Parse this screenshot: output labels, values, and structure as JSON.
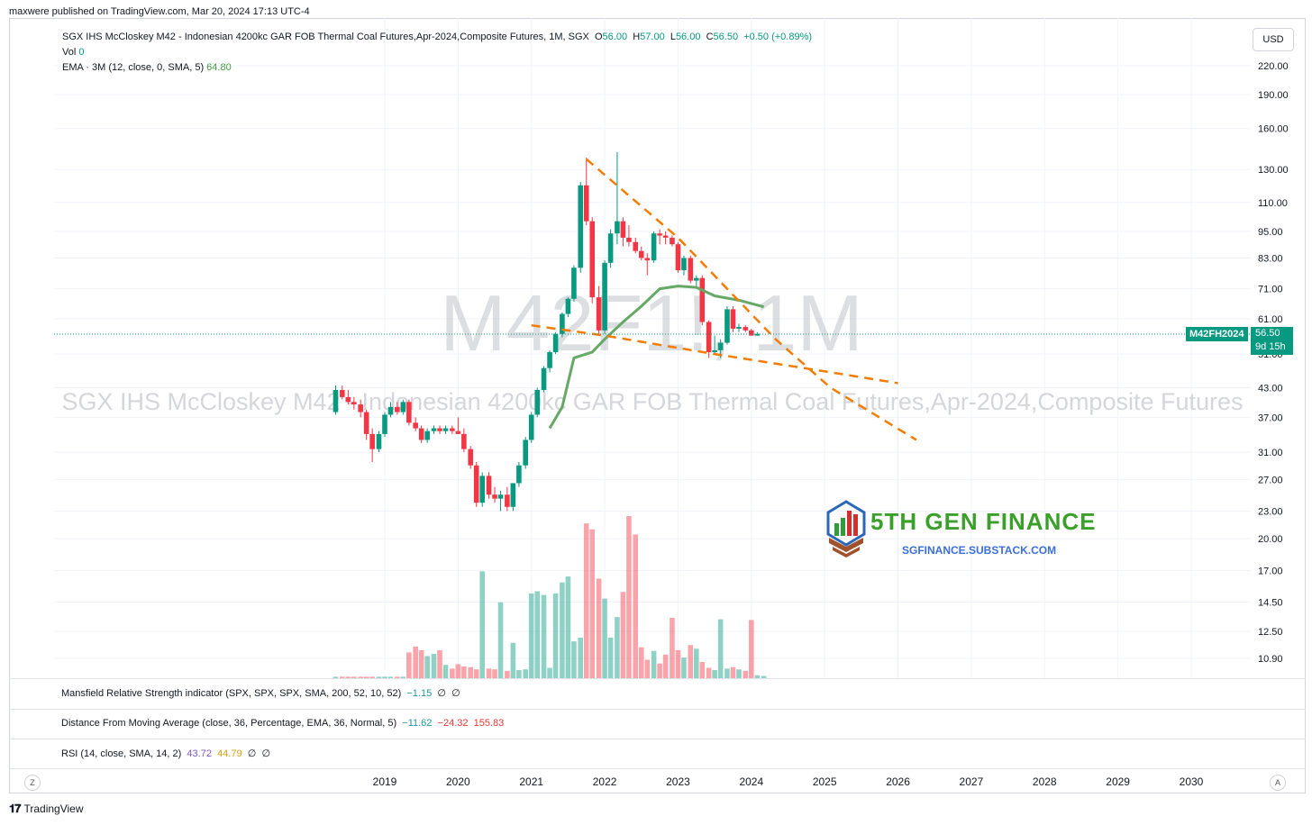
{
  "header": {
    "published": "maxwere published on TradingView.com, Mar 20, 2024 17:13 UTC-4"
  },
  "legend": {
    "symbol_desc": "SGX IHS McCloskey M42 - Indonesian 4200kc GAR FOB Thermal Coal Futures,Apr-2024,Composite Futures, 1M, SGX",
    "o_label": "O",
    "o_val": "56.00",
    "h_label": "H",
    "h_val": "57.00",
    "l_label": "L",
    "l_val": "56.00",
    "c_label": "C",
    "c_val": "56.50",
    "change": "+0.50 (+0.89%)",
    "vol_label": "Vol",
    "vol_val": "0",
    "ema_label": "EMA · 3M (12, close, 0, SMA, 5)",
    "ema_val": "64.80"
  },
  "watermark": {
    "ticker": "M42F1!, 1M",
    "name": "SGX IHS McCloskey M42 - Indonesian 4200kc GAR FOB Thermal Coal Futures,Apr-2024,Composite Futures"
  },
  "currency_button": "USD",
  "price_tag": {
    "symbol": "M42FH2024",
    "price": "56.50",
    "countdown": "9d 15h"
  },
  "brand": {
    "title": "5TH GEN FINANCE",
    "subtitle": "SGFINANCE.SUBSTACK.COM"
  },
  "indicators": {
    "mansfield": {
      "label": "Mansfield Relative Strength indicator (SPX, SPX, SPX, SMA, 200, 52, 10, 52)",
      "v1": "−1.15",
      "v2": "∅",
      "v3": "∅"
    },
    "dfma": {
      "label": "Distance From Moving Average (close, 36, Percentage, EMA, 36, Normal, 5)",
      "v1": "−11.62",
      "v2": "−24.32",
      "v3": "155.83"
    },
    "rsi": {
      "label": "RSI (14, close, SMA, 14, 2)",
      "v1": "43.72",
      "v2": "44.79",
      "v3": "∅",
      "v4": "∅"
    }
  },
  "footer": {
    "z": "Z",
    "a": "A",
    "brand": "TradingView"
  },
  "colors": {
    "up": "#089981",
    "down": "#f23645",
    "ema": "#66a865",
    "trend": "#f57c00"
  },
  "chart_data": {
    "type": "candlestick",
    "y_scale": "log",
    "y_ticks": [
      "220.00",
      "190.00",
      "160.00",
      "130.00",
      "110.00",
      "95.00",
      "83.00",
      "71.00",
      "61.00",
      "51.00",
      "43.00",
      "37.00",
      "31.00",
      "27.00",
      "23.00",
      "20.00",
      "17.00",
      "14.50",
      "12.50",
      "10.90"
    ],
    "x_ticks": [
      "2019",
      "2020",
      "2021",
      "2022",
      "2023",
      "2024",
      "2025",
      "2026",
      "2027",
      "2028",
      "2029",
      "2030"
    ],
    "last_price": 56.5,
    "candles": [
      {
        "t": 2018.33,
        "o": 38.0,
        "h": 43.5,
        "l": 37.5,
        "c": 42.5
      },
      {
        "t": 2018.42,
        "o": 42.5,
        "h": 43.5,
        "l": 40.5,
        "c": 41.0
      },
      {
        "t": 2018.5,
        "o": 41.0,
        "h": 42.5,
        "l": 39.5,
        "c": 40.0
      },
      {
        "t": 2018.58,
        "o": 40.0,
        "h": 41.0,
        "l": 38.5,
        "c": 39.5
      },
      {
        "t": 2018.67,
        "o": 39.5,
        "h": 40.5,
        "l": 37.0,
        "c": 38.0
      },
      {
        "t": 2018.75,
        "o": 38.0,
        "h": 38.5,
        "l": 33.0,
        "c": 34.0
      },
      {
        "t": 2018.83,
        "o": 34.0,
        "h": 35.0,
        "l": 29.5,
        "c": 31.5
      },
      {
        "t": 2018.92,
        "o": 31.5,
        "h": 34.5,
        "l": 31.0,
        "c": 34.0
      },
      {
        "t": 2019.0,
        "o": 34.0,
        "h": 38.0,
        "l": 33.5,
        "c": 37.5
      },
      {
        "t": 2019.08,
        "o": 37.5,
        "h": 40.0,
        "l": 37.0,
        "c": 39.0
      },
      {
        "t": 2019.17,
        "o": 39.0,
        "h": 40.0,
        "l": 37.5,
        "c": 38.0
      },
      {
        "t": 2019.25,
        "o": 38.0,
        "h": 40.5,
        "l": 37.5,
        "c": 40.0
      },
      {
        "t": 2019.33,
        "o": 40.0,
        "h": 40.5,
        "l": 35.5,
        "c": 36.0
      },
      {
        "t": 2019.42,
        "o": 36.0,
        "h": 37.0,
        "l": 34.5,
        "c": 35.0
      },
      {
        "t": 2019.5,
        "o": 35.0,
        "h": 35.5,
        "l": 32.5,
        "c": 33.0
      },
      {
        "t": 2019.58,
        "o": 33.0,
        "h": 35.0,
        "l": 32.5,
        "c": 34.5
      },
      {
        "t": 2019.67,
        "o": 34.5,
        "h": 35.5,
        "l": 34.0,
        "c": 35.0
      },
      {
        "t": 2019.75,
        "o": 35.0,
        "h": 35.5,
        "l": 34.0,
        "c": 34.5
      },
      {
        "t": 2019.83,
        "o": 34.5,
        "h": 35.5,
        "l": 34.0,
        "c": 35.0
      },
      {
        "t": 2019.92,
        "o": 35.0,
        "h": 35.5,
        "l": 34.0,
        "c": 34.5
      },
      {
        "t": 2020.0,
        "o": 34.5,
        "h": 37.0,
        "l": 34.0,
        "c": 34.0
      },
      {
        "t": 2020.08,
        "o": 34.0,
        "h": 35.0,
        "l": 31.0,
        "c": 31.5
      },
      {
        "t": 2020.17,
        "o": 31.5,
        "h": 32.0,
        "l": 28.5,
        "c": 29.0
      },
      {
        "t": 2020.25,
        "o": 29.0,
        "h": 29.5,
        "l": 23.5,
        "c": 24.0
      },
      {
        "t": 2020.33,
        "o": 24.0,
        "h": 28.0,
        "l": 23.5,
        "c": 27.5
      },
      {
        "t": 2020.42,
        "o": 27.5,
        "h": 28.0,
        "l": 24.5,
        "c": 25.0
      },
      {
        "t": 2020.5,
        "o": 25.0,
        "h": 26.0,
        "l": 24.0,
        "c": 24.5
      },
      {
        "t": 2020.58,
        "o": 24.5,
        "h": 25.5,
        "l": 23.0,
        "c": 25.0
      },
      {
        "t": 2020.67,
        "o": 25.0,
        "h": 26.0,
        "l": 23.0,
        "c": 23.5
      },
      {
        "t": 2020.75,
        "o": 23.5,
        "h": 26.5,
        "l": 23.0,
        "c": 26.5
      },
      {
        "t": 2020.83,
        "o": 26.5,
        "h": 29.5,
        "l": 26.0,
        "c": 29.0
      },
      {
        "t": 2020.92,
        "o": 29.0,
        "h": 33.5,
        "l": 28.5,
        "c": 33.0
      },
      {
        "t": 2021.0,
        "o": 33.0,
        "h": 38.0,
        "l": 32.5,
        "c": 37.5
      },
      {
        "t": 2021.08,
        "o": 37.5,
        "h": 43.0,
        "l": 37.0,
        "c": 42.5
      },
      {
        "t": 2021.17,
        "o": 42.5,
        "h": 48.0,
        "l": 42.0,
        "c": 47.5
      },
      {
        "t": 2021.25,
        "o": 47.5,
        "h": 52.0,
        "l": 46.5,
        "c": 51.5
      },
      {
        "t": 2021.33,
        "o": 51.5,
        "h": 57.0,
        "l": 51.0,
        "c": 56.5
      },
      {
        "t": 2021.42,
        "o": 56.5,
        "h": 63.0,
        "l": 55.5,
        "c": 62.5
      },
      {
        "t": 2021.5,
        "o": 62.5,
        "h": 68.0,
        "l": 61.5,
        "c": 67.5
      },
      {
        "t": 2021.58,
        "o": 67.5,
        "h": 80.0,
        "l": 66.5,
        "c": 79.0
      },
      {
        "t": 2021.67,
        "o": 79.0,
        "h": 122.0,
        "l": 77.0,
        "c": 120.0
      },
      {
        "t": 2021.75,
        "o": 120.0,
        "h": 138.0,
        "l": 98.0,
        "c": 100.0
      },
      {
        "t": 2021.83,
        "o": 100.0,
        "h": 102.0,
        "l": 66.0,
        "c": 68.0
      },
      {
        "t": 2021.92,
        "o": 68.0,
        "h": 72.0,
        "l": 56.0,
        "c": 57.5
      },
      {
        "t": 2022.0,
        "o": 57.5,
        "h": 82.0,
        "l": 56.5,
        "c": 81.0
      },
      {
        "t": 2022.08,
        "o": 81.0,
        "h": 96.0,
        "l": 79.0,
        "c": 94.0
      },
      {
        "t": 2022.17,
        "o": 94.0,
        "h": 142.0,
        "l": 89.0,
        "c": 100.0
      },
      {
        "t": 2022.25,
        "o": 100.0,
        "h": 102.0,
        "l": 88.0,
        "c": 92.0
      },
      {
        "t": 2022.33,
        "o": 92.0,
        "h": 98.0,
        "l": 88.0,
        "c": 90.0
      },
      {
        "t": 2022.42,
        "o": 90.0,
        "h": 92.0,
        "l": 85.0,
        "c": 86.0
      },
      {
        "t": 2022.5,
        "o": 86.0,
        "h": 88.0,
        "l": 82.0,
        "c": 83.0
      },
      {
        "t": 2022.58,
        "o": 83.0,
        "h": 85.0,
        "l": 76.0,
        "c": 82.0
      },
      {
        "t": 2022.67,
        "o": 82.0,
        "h": 95.0,
        "l": 81.0,
        "c": 94.0
      },
      {
        "t": 2022.75,
        "o": 94.0,
        "h": 96.0,
        "l": 89.0,
        "c": 93.0
      },
      {
        "t": 2022.83,
        "o": 93.0,
        "h": 95.0,
        "l": 89.0,
        "c": 92.0
      },
      {
        "t": 2022.92,
        "o": 92.0,
        "h": 93.0,
        "l": 88.0,
        "c": 89.0
      },
      {
        "t": 2023.0,
        "o": 89.0,
        "h": 90.0,
        "l": 77.0,
        "c": 78.0
      },
      {
        "t": 2023.08,
        "o": 78.0,
        "h": 84.0,
        "l": 76.0,
        "c": 83.0
      },
      {
        "t": 2023.17,
        "o": 83.0,
        "h": 84.0,
        "l": 73.0,
        "c": 74.0
      },
      {
        "t": 2023.25,
        "o": 74.0,
        "h": 76.0,
        "l": 72.0,
        "c": 75.0
      },
      {
        "t": 2023.33,
        "o": 75.0,
        "h": 76.0,
        "l": 59.0,
        "c": 60.0
      },
      {
        "t": 2023.42,
        "o": 60.0,
        "h": 60.5,
        "l": 50.0,
        "c": 51.5
      },
      {
        "t": 2023.5,
        "o": 51.5,
        "h": 56.0,
        "l": 51.0,
        "c": 52.0
      },
      {
        "t": 2023.58,
        "o": 52.0,
        "h": 55.0,
        "l": 50.0,
        "c": 54.0
      },
      {
        "t": 2023.67,
        "o": 54.0,
        "h": 65.0,
        "l": 53.5,
        "c": 64.0
      },
      {
        "t": 2023.75,
        "o": 64.0,
        "h": 65.0,
        "l": 57.0,
        "c": 58.0
      },
      {
        "t": 2023.83,
        "o": 58.0,
        "h": 59.5,
        "l": 57.0,
        "c": 58.5
      },
      {
        "t": 2023.92,
        "o": 58.5,
        "h": 59.0,
        "l": 57.0,
        "c": 57.5
      },
      {
        "t": 2024.0,
        "o": 57.5,
        "h": 58.0,
        "l": 56.0,
        "c": 56.0
      },
      {
        "t": 2024.08,
        "o": 56.0,
        "h": 57.0,
        "l": 56.0,
        "c": 56.5
      }
    ],
    "volume": [
      {
        "t": 2018.33,
        "v": 0.2
      },
      {
        "t": 2018.42,
        "v": 0.2
      },
      {
        "t": 2018.5,
        "v": 0.2
      },
      {
        "t": 2018.58,
        "v": 0.2
      },
      {
        "t": 2018.67,
        "v": 0.2
      },
      {
        "t": 2018.75,
        "v": 0.2
      },
      {
        "t": 2018.83,
        "v": 0.2
      },
      {
        "t": 2018.92,
        "v": 0.2
      },
      {
        "t": 2019.0,
        "v": 0.2
      },
      {
        "t": 2019.08,
        "v": 0.2
      },
      {
        "t": 2019.17,
        "v": 0.2
      },
      {
        "t": 2019.25,
        "v": 0.2
      },
      {
        "t": 2019.33,
        "v": 3.5
      },
      {
        "t": 2019.42,
        "v": 4.3
      },
      {
        "t": 2019.5,
        "v": 3.8
      },
      {
        "t": 2019.58,
        "v": 3.0
      },
      {
        "t": 2019.67,
        "v": 3.3
      },
      {
        "t": 2019.75,
        "v": 3.8
      },
      {
        "t": 2019.83,
        "v": 1.8
      },
      {
        "t": 2019.92,
        "v": 1.3
      },
      {
        "t": 2020.0,
        "v": 1.9
      },
      {
        "t": 2020.08,
        "v": 1.6
      },
      {
        "t": 2020.17,
        "v": 1.5
      },
      {
        "t": 2020.25,
        "v": 1.2
      },
      {
        "t": 2020.33,
        "v": 14.5
      },
      {
        "t": 2020.42,
        "v": 1.3
      },
      {
        "t": 2020.5,
        "v": 1.2
      },
      {
        "t": 2020.58,
        "v": 10.3
      },
      {
        "t": 2020.67,
        "v": 1.0
      },
      {
        "t": 2020.75,
        "v": 4.8
      },
      {
        "t": 2020.83,
        "v": 1.1
      },
      {
        "t": 2020.92,
        "v": 1.2
      },
      {
        "t": 2021.0,
        "v": 11.5
      },
      {
        "t": 2021.08,
        "v": 11.8
      },
      {
        "t": 2021.17,
        "v": 11.3
      },
      {
        "t": 2021.25,
        "v": 1.4
      },
      {
        "t": 2021.33,
        "v": 11.5
      },
      {
        "t": 2021.42,
        "v": 13.0
      },
      {
        "t": 2021.5,
        "v": 13.8
      },
      {
        "t": 2021.58,
        "v": 5.0
      },
      {
        "t": 2021.67,
        "v": 5.5
      },
      {
        "t": 2021.75,
        "v": 21.0
      },
      {
        "t": 2021.83,
        "v": 20.2
      },
      {
        "t": 2021.92,
        "v": 13.5
      },
      {
        "t": 2022.0,
        "v": 10.8
      },
      {
        "t": 2022.08,
        "v": 5.5
      },
      {
        "t": 2022.17,
        "v": 8.3
      },
      {
        "t": 2022.25,
        "v": 11.7
      },
      {
        "t": 2022.33,
        "v": 22.0
      },
      {
        "t": 2022.42,
        "v": 19.5
      },
      {
        "t": 2022.5,
        "v": 4.2
      },
      {
        "t": 2022.58,
        "v": 2.5
      },
      {
        "t": 2022.67,
        "v": 3.7
      },
      {
        "t": 2022.75,
        "v": 2.0
      },
      {
        "t": 2022.83,
        "v": 3.2
      },
      {
        "t": 2022.92,
        "v": 8.2
      },
      {
        "t": 2023.0,
        "v": 3.8
      },
      {
        "t": 2023.08,
        "v": 2.8
      },
      {
        "t": 2023.17,
        "v": 4.5
      },
      {
        "t": 2023.25,
        "v": 4.0
      },
      {
        "t": 2023.33,
        "v": 2.2
      },
      {
        "t": 2023.42,
        "v": 1.4
      },
      {
        "t": 2023.5,
        "v": 1.1
      },
      {
        "t": 2023.58,
        "v": 8.0
      },
      {
        "t": 2023.67,
        "v": 1.3
      },
      {
        "t": 2023.75,
        "v": 1.5
      },
      {
        "t": 2023.83,
        "v": 1.2
      },
      {
        "t": 2023.92,
        "v": 1.0
      },
      {
        "t": 2024.0,
        "v": 7.9
      },
      {
        "t": 2024.08,
        "v": 0.4
      },
      {
        "t": 2024.17,
        "v": 0.3
      }
    ],
    "ema_3m": [
      {
        "t": 2021.25,
        "v": 35.0
      },
      {
        "t": 2021.42,
        "v": 39.0
      },
      {
        "t": 2021.58,
        "v": 50.0
      },
      {
        "t": 2021.83,
        "v": 51.5
      },
      {
        "t": 2022.0,
        "v": 55.0
      },
      {
        "t": 2022.25,
        "v": 60.0
      },
      {
        "t": 2022.5,
        "v": 65.0
      },
      {
        "t": 2022.75,
        "v": 71.0
      },
      {
        "t": 2023.0,
        "v": 72.0
      },
      {
        "t": 2023.25,
        "v": 71.5
      },
      {
        "t": 2023.5,
        "v": 68.5
      },
      {
        "t": 2023.83,
        "v": 67.0
      },
      {
        "t": 2024.17,
        "v": 64.8
      }
    ],
    "trendlines": [
      {
        "name": "upper",
        "points": [
          {
            "t": 2021.75,
            "v": 137.0
          },
          {
            "t": 2023.0,
            "v": 92.0
          },
          {
            "t": 2024.33,
            "v": 55.0
          },
          {
            "t": 2025.08,
            "v": 43.0
          },
          {
            "t": 2026.25,
            "v": 33.0
          }
        ]
      },
      {
        "name": "lower",
        "points": [
          {
            "t": 2021.0,
            "v": 59.0
          },
          {
            "t": 2022.0,
            "v": 56.0
          },
          {
            "t": 2023.5,
            "v": 51.0
          },
          {
            "t": 2025.08,
            "v": 46.5
          },
          {
            "t": 2026.0,
            "v": 44.0
          }
        ]
      }
    ]
  }
}
